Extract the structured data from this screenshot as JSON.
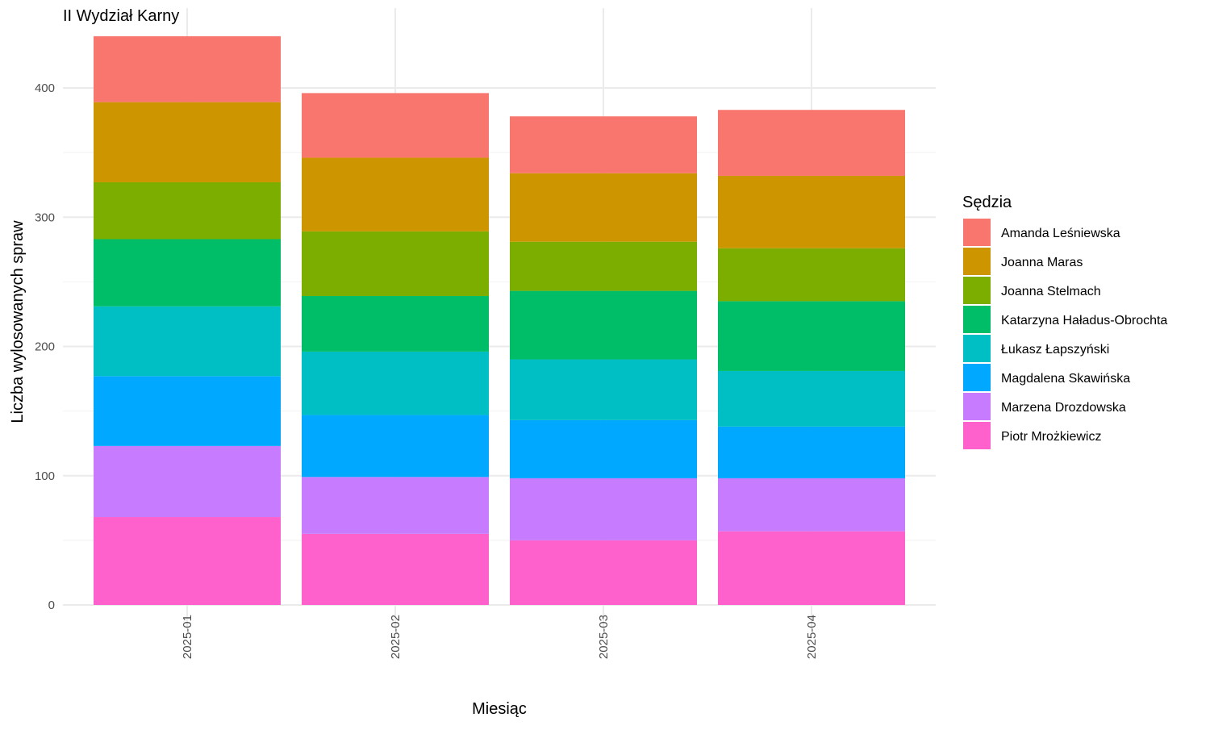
{
  "chart_data": {
    "type": "bar",
    "stacked": true,
    "title": "II Wydział Karny",
    "xlabel": "Miesiąc",
    "ylabel": "Liczba wylosowanych spraw",
    "categories": [
      "2025-01",
      "2025-02",
      "2025-03",
      "2025-04"
    ],
    "ylim": [
      0,
      440
    ],
    "yticks": [
      0,
      100,
      200,
      300,
      400
    ],
    "grid": true,
    "legend_title": "Sędzia",
    "legend_position": "right",
    "series": [
      {
        "name": "Piotr Mrożkiewicz",
        "color": "#FF61CC",
        "values": [
          68,
          55,
          50,
          57
        ]
      },
      {
        "name": "Marzena Drozdowska",
        "color": "#C77CFF",
        "values": [
          55,
          44,
          48,
          41
        ]
      },
      {
        "name": "Magdalena Skawińska",
        "color": "#00A9FF",
        "values": [
          54,
          48,
          45,
          40
        ]
      },
      {
        "name": "Łukasz Łapszyński",
        "color": "#00BFC4",
        "values": [
          54,
          49,
          47,
          43
        ]
      },
      {
        "name": "Katarzyna Haładus-Obrochta",
        "color": "#00BE67",
        "values": [
          52,
          43,
          53,
          54
        ]
      },
      {
        "name": "Joanna Stelmach",
        "color": "#7CAE00",
        "values": [
          44,
          50,
          38,
          41
        ]
      },
      {
        "name": "Joanna Maras",
        "color": "#CD9600",
        "values": [
          62,
          57,
          53,
          56
        ]
      },
      {
        "name": "Amanda Leśniewska",
        "color": "#F8766D",
        "values": [
          51,
          50,
          44,
          51
        ]
      }
    ],
    "legend_order": [
      "Amanda Leśniewska",
      "Joanna Maras",
      "Joanna Stelmach",
      "Katarzyna Haładus-Obrochta",
      "Łukasz Łapszyński",
      "Magdalena Skawińska",
      "Marzena Drozdowska",
      "Piotr Mrożkiewicz"
    ]
  }
}
